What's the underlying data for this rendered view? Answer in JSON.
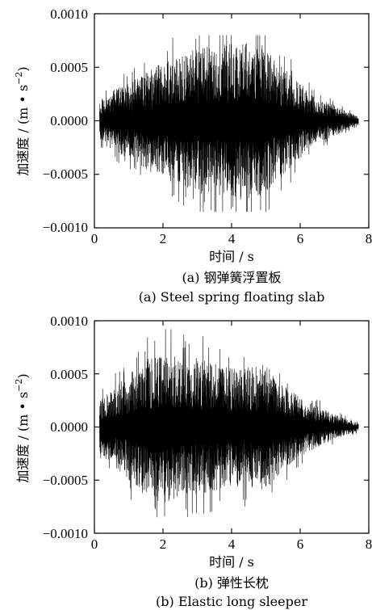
{
  "chart_data": [
    {
      "type": "line",
      "caption_cn": "(a)  钢弹簧浮置板",
      "caption_en": "(a)  Steel spring floating slab",
      "xlabel": "时间 / s",
      "ylabel_main": "加速度 / (m • s",
      "ylabel_exp": "−2",
      "ylabel_close": ")",
      "xlim": [
        0,
        8
      ],
      "ylim": [
        -0.001,
        0.001
      ],
      "xticks": [
        "0",
        "2",
        "4",
        "6",
        "8"
      ],
      "yticks": [
        "0.0010",
        "0.0005",
        "0.0000",
        "−0.0005",
        "−0.0010"
      ],
      "signal": {
        "t_start": 0.15,
        "t_end": 7.7,
        "envelope_t": [
          0.15,
          0.5,
          1.0,
          1.5,
          2.0,
          2.5,
          3.0,
          3.5,
          4.0,
          4.5,
          5.0,
          5.5,
          6.0,
          6.5,
          7.0,
          7.3,
          7.7
        ],
        "envelope_a": [
          0.0002,
          0.00028,
          0.00035,
          0.00045,
          0.00055,
          0.0006,
          0.00068,
          0.0007,
          0.00072,
          0.00075,
          0.0007,
          0.0005,
          0.00035,
          0.0002,
          0.00015,
          0.0001,
          4e-05
        ],
        "peak_max": 0.0008,
        "peak_min": -0.00085
      }
    },
    {
      "type": "line",
      "caption_cn": "(b)  弹性长枕",
      "caption_en": "(b)  Elastic long sleeper",
      "xlabel": "时间 / s",
      "ylabel_main": "加速度 / (m • s",
      "ylabel_exp": "−2",
      "ylabel_close": ")",
      "xlim": [
        0,
        8
      ],
      "ylim": [
        -0.001,
        0.001
      ],
      "xticks": [
        "0",
        "2",
        "4",
        "6",
        "8"
      ],
      "yticks": [
        "0.0010",
        "0.0005",
        "0.0000",
        "−0.0005",
        "−0.0010"
      ],
      "signal": {
        "t_start": 0.15,
        "t_end": 7.7,
        "envelope_t": [
          0.15,
          0.5,
          1.0,
          1.5,
          2.0,
          2.5,
          3.0,
          3.5,
          4.0,
          4.5,
          5.0,
          5.5,
          6.0,
          6.5,
          7.0,
          7.3,
          7.7
        ],
        "envelope_a": [
          0.00025,
          0.00035,
          0.0005,
          0.00065,
          0.00072,
          0.00068,
          0.00065,
          0.0006,
          0.00055,
          0.00058,
          0.0006,
          0.0004,
          0.00028,
          0.0002,
          0.00012,
          8e-05,
          4e-05
        ],
        "peak_max": 0.00092,
        "peak_min": -0.00085
      }
    }
  ]
}
